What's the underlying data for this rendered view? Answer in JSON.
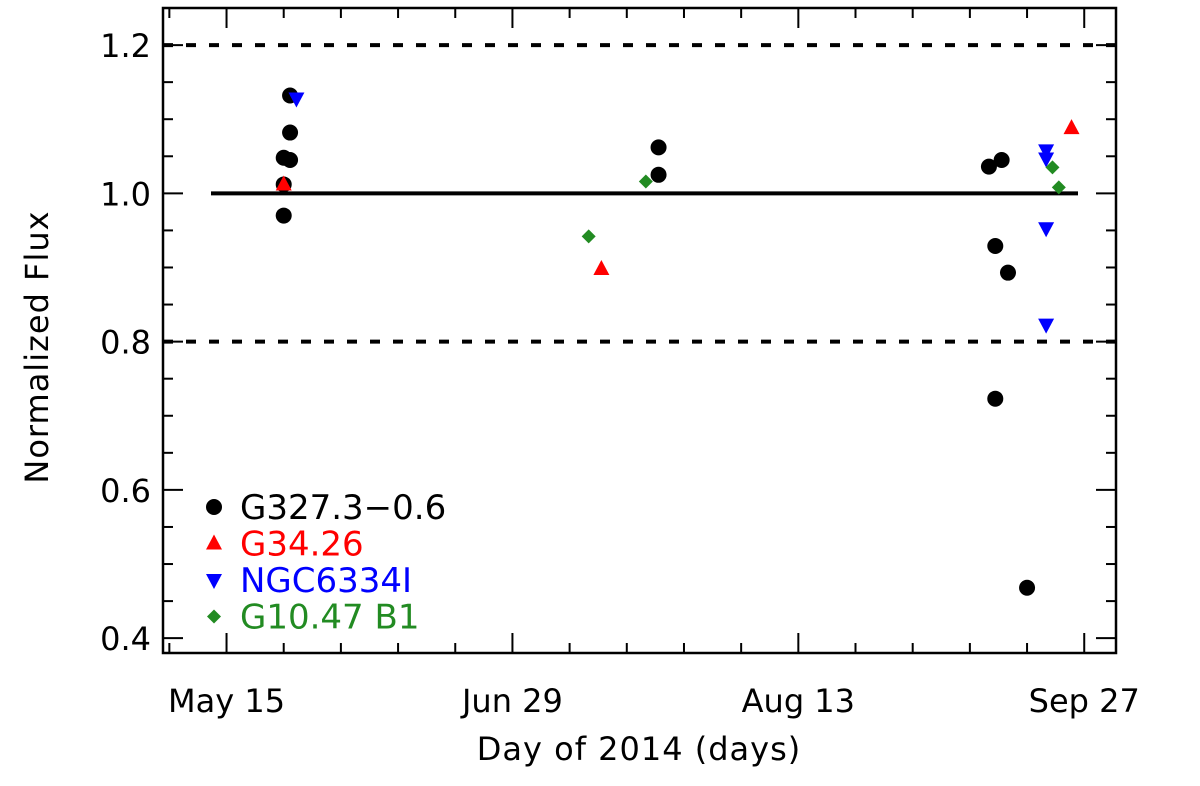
{
  "chart_data": {
    "type": "scatter",
    "xlabel": "Day of 2014 (days)",
    "ylabel": "Normalized Flux",
    "xlim": [
      "2014-05-05",
      "2014-10-02"
    ],
    "ylim": [
      0.38,
      1.25
    ],
    "x_tick_labels": [
      {
        "date": "2014-05-15",
        "label": "May 15"
      },
      {
        "date": "2014-06-29",
        "label": "Jun 29"
      },
      {
        "date": "2014-08-13",
        "label": "Aug 13"
      },
      {
        "date": "2014-09-27",
        "label": "Sep 27"
      }
    ],
    "y_tick_labels": [
      {
        "value": 0.4,
        "label": "0.4"
      },
      {
        "value": 0.6,
        "label": "0.6"
      },
      {
        "value": 0.8,
        "label": "0.8"
      },
      {
        "value": 1.0,
        "label": "1.0"
      },
      {
        "value": 1.2,
        "label": "1.2"
      }
    ],
    "reference_lines": [
      {
        "y": 1.0,
        "style": "solid"
      },
      {
        "y": 1.2,
        "style": "dashed"
      },
      {
        "y": 0.8,
        "style": "dashed"
      }
    ],
    "grid": false,
    "legend_position": "bottom-left",
    "series": [
      {
        "name": "G327.3−0.6",
        "marker": "circle",
        "color": "#000000",
        "points": [
          {
            "x": "2014-05-24",
            "y": 0.97
          },
          {
            "x": "2014-05-24",
            "y": 1.012
          },
          {
            "x": "2014-05-24",
            "y": 1.048
          },
          {
            "x": "2014-05-25",
            "y": 1.045
          },
          {
            "x": "2014-05-25",
            "y": 1.082
          },
          {
            "x": "2014-05-25",
            "y": 1.132
          },
          {
            "x": "2014-07-22",
            "y": 1.025
          },
          {
            "x": "2014-07-22",
            "y": 1.062
          },
          {
            "x": "2014-09-12",
            "y": 1.036
          },
          {
            "x": "2014-09-13",
            "y": 0.929
          },
          {
            "x": "2014-09-13",
            "y": 0.723
          },
          {
            "x": "2014-09-14",
            "y": 1.045
          },
          {
            "x": "2014-09-15",
            "y": 0.893
          },
          {
            "x": "2014-09-18",
            "y": 0.468
          }
        ]
      },
      {
        "name": "G34.26",
        "marker": "triangle-up",
        "color": "#ff0000",
        "points": [
          {
            "x": "2014-05-24",
            "y": 1.012
          },
          {
            "x": "2014-07-13",
            "y": 0.898
          },
          {
            "x": "2014-09-25",
            "y": 1.088
          }
        ]
      },
      {
        "name": "NGC6334I",
        "marker": "triangle-down",
        "color": "#0000ff",
        "points": [
          {
            "x": "2014-05-26",
            "y": 1.128
          },
          {
            "x": "2014-09-21",
            "y": 1.058
          },
          {
            "x": "2014-09-21",
            "y": 1.047
          },
          {
            "x": "2014-09-21",
            "y": 0.953
          },
          {
            "x": "2014-09-21",
            "y": 0.823
          }
        ]
      },
      {
        "name": "G10.47 B1",
        "marker": "diamond",
        "color": "#228b22",
        "points": [
          {
            "x": "2014-07-11",
            "y": 0.942
          },
          {
            "x": "2014-07-20",
            "y": 1.016
          },
          {
            "x": "2014-09-22",
            "y": 1.035
          },
          {
            "x": "2014-09-23",
            "y": 1.008
          }
        ]
      }
    ]
  }
}
